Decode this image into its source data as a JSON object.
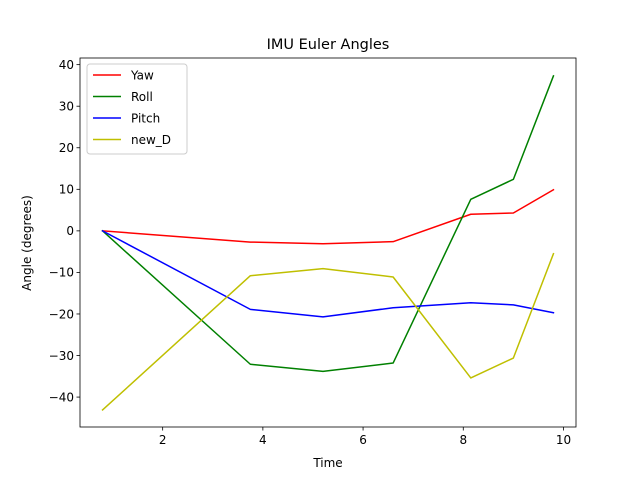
{
  "chart_data": {
    "type": "line",
    "title": "IMU Euler Angles",
    "xlabel": "Time",
    "ylabel": "Angle (degrees)",
    "xlim": [
      0.35,
      10.25
    ],
    "ylim": [
      -47.2,
      41.6
    ],
    "xticks": [
      2,
      4,
      6,
      8,
      10
    ],
    "yticks": [
      -40,
      -30,
      -20,
      -10,
      0,
      10,
      20,
      30,
      40
    ],
    "grid": false,
    "legend_position": "top-left",
    "x": [
      0.8,
      3.75,
      5.2,
      6.6,
      8.15,
      9.0,
      9.8
    ],
    "series": [
      {
        "name": "Yaw",
        "color": "#ff0000",
        "values": [
          0,
          -2.7,
          -3.1,
          -2.6,
          4.0,
          4.3,
          9.9
        ]
      },
      {
        "name": "Roll",
        "color": "#008000",
        "values": [
          0,
          -32.1,
          -33.8,
          -31.8,
          7.6,
          12.4,
          37.3
        ]
      },
      {
        "name": "Pitch",
        "color": "#0000ff",
        "values": [
          0,
          -18.9,
          -20.7,
          -18.5,
          -17.3,
          -17.8,
          -19.7
        ]
      },
      {
        "name": "new_D",
        "color": "#bfbf00",
        "values": [
          -43.1,
          -10.8,
          -9.1,
          -11.1,
          -35.4,
          -30.6,
          -5.5
        ]
      }
    ]
  }
}
